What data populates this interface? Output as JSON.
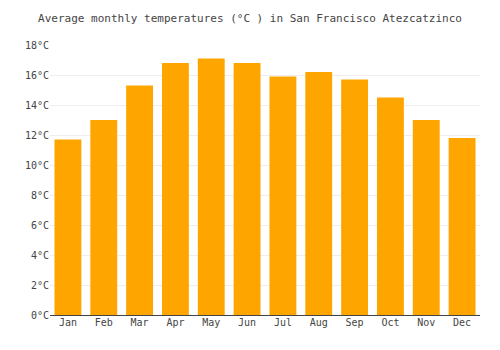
{
  "chart_data": {
    "type": "bar",
    "title": "Average monthly temperatures (°C ) in San Francisco Atezcatzinco",
    "categories": [
      "Jan",
      "Feb",
      "Mar",
      "Apr",
      "May",
      "Jun",
      "Jul",
      "Aug",
      "Sep",
      "Oct",
      "Nov",
      "Dec"
    ],
    "values": [
      11.7,
      13.0,
      15.3,
      16.8,
      17.1,
      16.8,
      15.9,
      16.2,
      15.7,
      14.5,
      13.0,
      11.8
    ],
    "color": "#FFA500",
    "ylim": [
      0,
      18
    ],
    "yticks": [
      {
        "value": 0,
        "label": "0°C"
      },
      {
        "value": 2,
        "label": "2°C"
      },
      {
        "value": 4,
        "label": "4°C"
      },
      {
        "value": 6,
        "label": "6°C"
      },
      {
        "value": 8,
        "label": "8°C"
      },
      {
        "value": 10,
        "label": "10°C"
      },
      {
        "value": 12,
        "label": "12°C"
      },
      {
        "value": 14,
        "label": "14°C"
      },
      {
        "value": 16,
        "label": "16°C"
      },
      {
        "value": 18,
        "label": "18°C"
      }
    ],
    "grid": true
  }
}
